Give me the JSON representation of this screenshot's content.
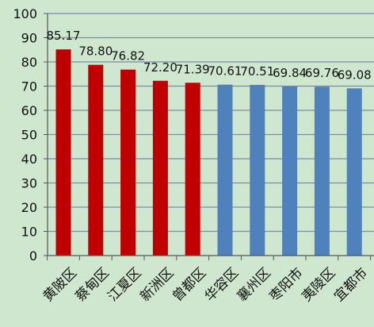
{
  "chart_data": {
    "type": "bar",
    "title": "",
    "xlabel": "",
    "ylabel": "",
    "ylim": [
      0,
      100
    ],
    "yticks": [
      0,
      10,
      20,
      30,
      40,
      50,
      60,
      70,
      80,
      90,
      100
    ],
    "grid": true,
    "legend": "none",
    "categories": [
      "黄陂区",
      "蔡甸区",
      "江夏区",
      "新洲区",
      "曾都区",
      "华容区",
      "襄州区",
      "枣阳市",
      "夷陵区",
      "宜都市"
    ],
    "values": [
      85.17,
      78.8,
      76.82,
      72.2,
      71.39,
      70.61,
      70.51,
      69.84,
      69.76,
      69.08
    ],
    "value_labels": [
      "85.17",
      "78.80",
      "76.82",
      "72.20",
      "71.39",
      "70.61",
      "70.51",
      "69.84",
      "69.76",
      "69.08"
    ],
    "bar_colors": [
      "#c00000",
      "#c00000",
      "#c00000",
      "#c00000",
      "#c00000",
      "#4f81bd",
      "#4f81bd",
      "#4f81bd",
      "#4f81bd",
      "#4f81bd"
    ],
    "colors": {
      "background": "#cfe6cf",
      "gridline": "#7e8aa6",
      "axis": "#555555"
    }
  }
}
